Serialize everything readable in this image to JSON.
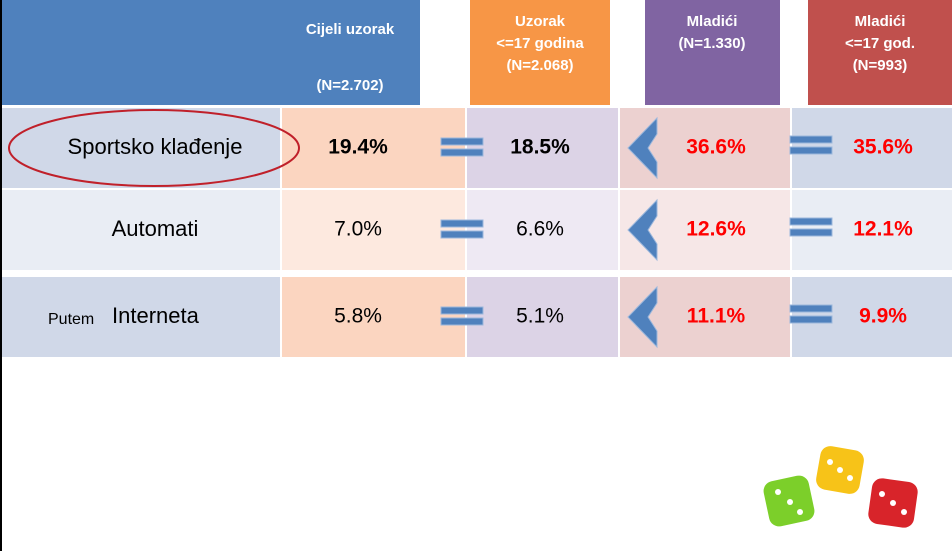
{
  "header": {
    "columns": [
      {
        "lines": [
          "Cijeli uzorak",
          "(N=2.702)"
        ]
      },
      {
        "lines": [
          "Uzorak",
          "<=17 godina",
          "(N=2.068)"
        ]
      },
      {
        "lines": [
          "Mladići",
          "(N=1.330)"
        ]
      },
      {
        "lines": [
          "Mladići",
          "<=17 god.",
          "(N=993)"
        ]
      }
    ]
  },
  "table": {
    "rows": [
      {
        "label": "Sportsko klađenje",
        "cells": [
          "19.4%",
          "18.5%",
          "36.6%",
          "35.6%"
        ]
      },
      {
        "label": "Automati",
        "cells": [
          "7.0%",
          "6.6%",
          "12.6%",
          "12.1%"
        ]
      },
      {
        "label_prefix": "Putem",
        "label": "Interneta",
        "cells": [
          "5.8%",
          "5.1%",
          "11.1%",
          "9.9%"
        ]
      }
    ]
  }
}
